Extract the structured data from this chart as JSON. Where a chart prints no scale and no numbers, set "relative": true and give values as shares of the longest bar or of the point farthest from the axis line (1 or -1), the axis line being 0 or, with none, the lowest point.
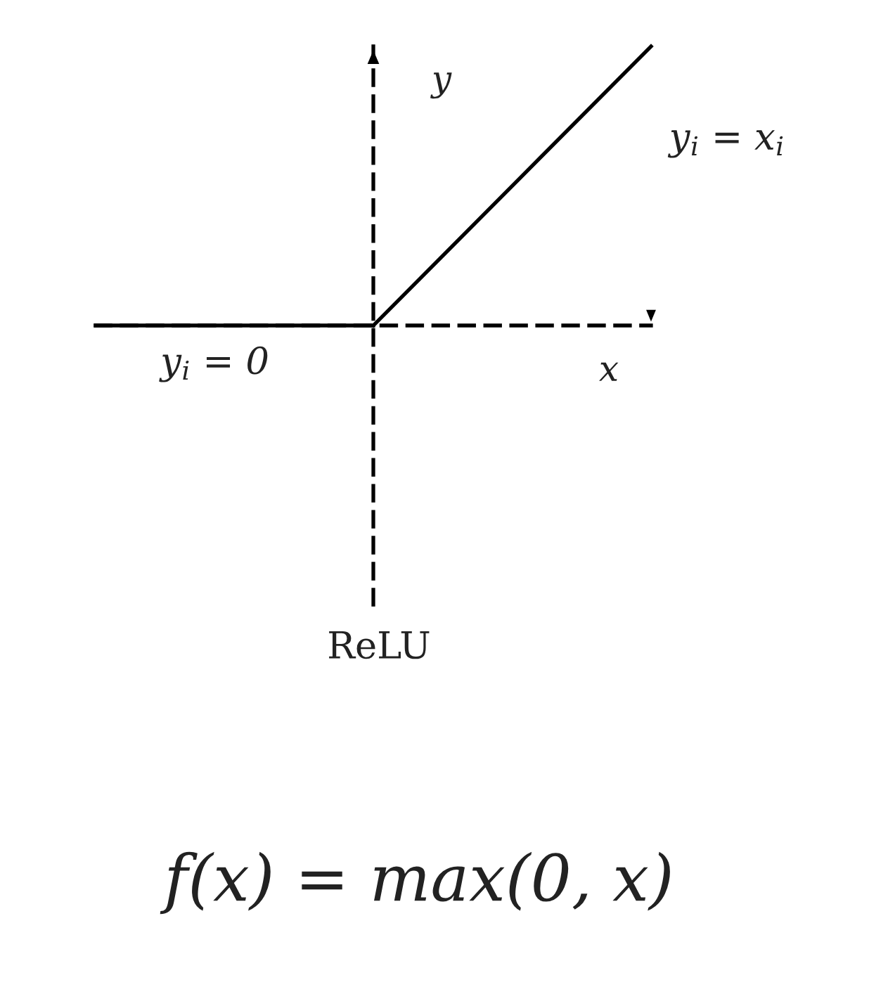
{
  "chart_data": {
    "type": "line",
    "relative": true,
    "categories": [
      null,
      null,
      null
    ],
    "xlabel": "x",
    "ylabel": "y",
    "series": [
      {
        "name": "y$_{i}$ = 0",
        "color": "#000000",
        "values": [
          0,
          0,
          null
        ]
      },
      {
        "name": "y$_{i}$ = x$_{i}$",
        "color": "#000000",
        "values": [
          null,
          0,
          1
        ]
      }
    ],
    "annotations": [
      "ReLU",
      "f(x) = max(0, x)"
    ],
    "line_style": "solid"
  }
}
